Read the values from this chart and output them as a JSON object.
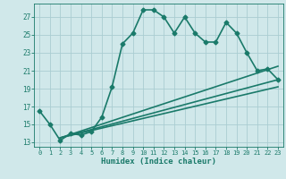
{
  "main_x": [
    0,
    1,
    2,
    3,
    4,
    5,
    6,
    7,
    8,
    9,
    10,
    11,
    12,
    13,
    14,
    15,
    16,
    17,
    18,
    19,
    20,
    21,
    22,
    23
  ],
  "main_y": [
    16.5,
    15.0,
    13.2,
    14.0,
    13.8,
    14.2,
    15.8,
    19.2,
    24.0,
    25.2,
    27.8,
    27.8,
    27.0,
    25.2,
    27.0,
    25.2,
    24.2,
    24.2,
    26.4,
    25.2,
    23.0,
    21.0,
    21.2,
    20.0
  ],
  "line1_x": [
    2,
    23
  ],
  "line1_y": [
    13.5,
    21.5
  ],
  "line2_x": [
    2,
    23
  ],
  "line2_y": [
    13.5,
    20.0
  ],
  "line3_x": [
    2,
    23
  ],
  "line3_y": [
    13.5,
    19.2
  ],
  "color": "#1a7a6a",
  "bg_color": "#d0e8ea",
  "grid_color": "#aacdd2",
  "xlabel": "Humidex (Indice chaleur)",
  "xlim": [
    -0.5,
    23.5
  ],
  "ylim": [
    12.5,
    28.5
  ],
  "yticks": [
    13,
    15,
    17,
    19,
    21,
    23,
    25,
    27
  ],
  "xticks": [
    0,
    1,
    2,
    3,
    4,
    5,
    6,
    7,
    8,
    9,
    10,
    11,
    12,
    13,
    14,
    15,
    16,
    17,
    18,
    19,
    20,
    21,
    22,
    23
  ],
  "markersize": 2.5,
  "linewidth": 1.2
}
